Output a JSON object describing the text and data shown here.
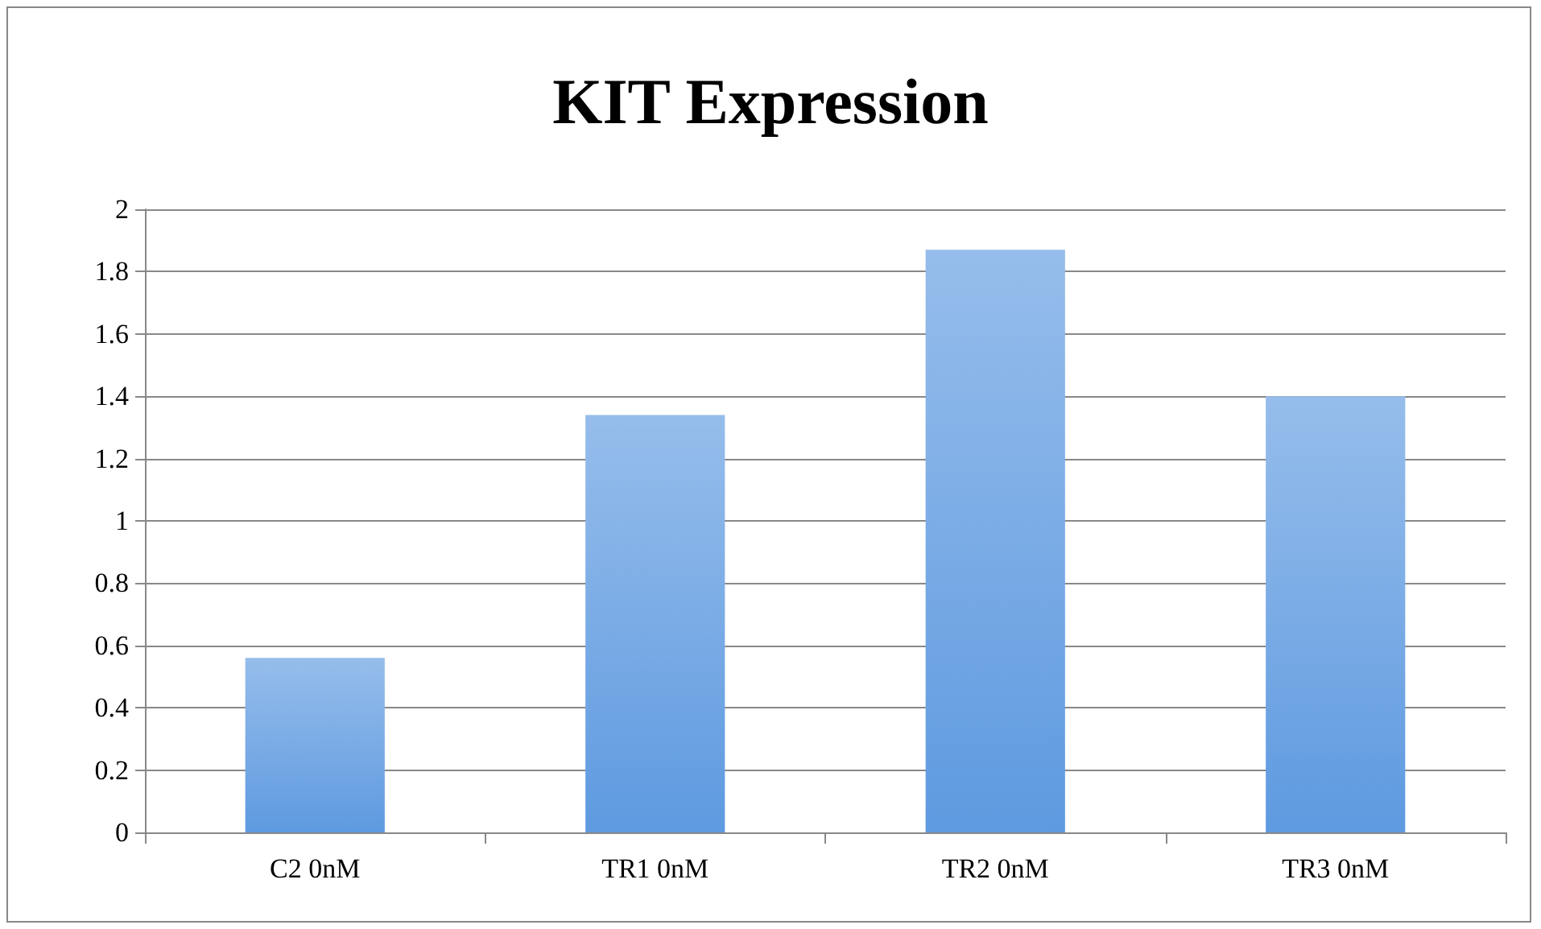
{
  "chart_data": {
    "type": "bar",
    "title": "KIT Expression",
    "categories": [
      "C2 0nM",
      "TR1 0nM",
      "TR2 0nM",
      "TR3 0nM"
    ],
    "values": [
      0.56,
      1.34,
      1.87,
      1.4
    ],
    "color": "#5e9ae0",
    "ylim": [
      0,
      2
    ],
    "yticks": [
      0,
      0.2,
      0.4,
      0.6,
      0.8,
      1,
      1.2,
      1.4,
      1.6,
      1.8,
      2
    ],
    "grid": "y"
  }
}
